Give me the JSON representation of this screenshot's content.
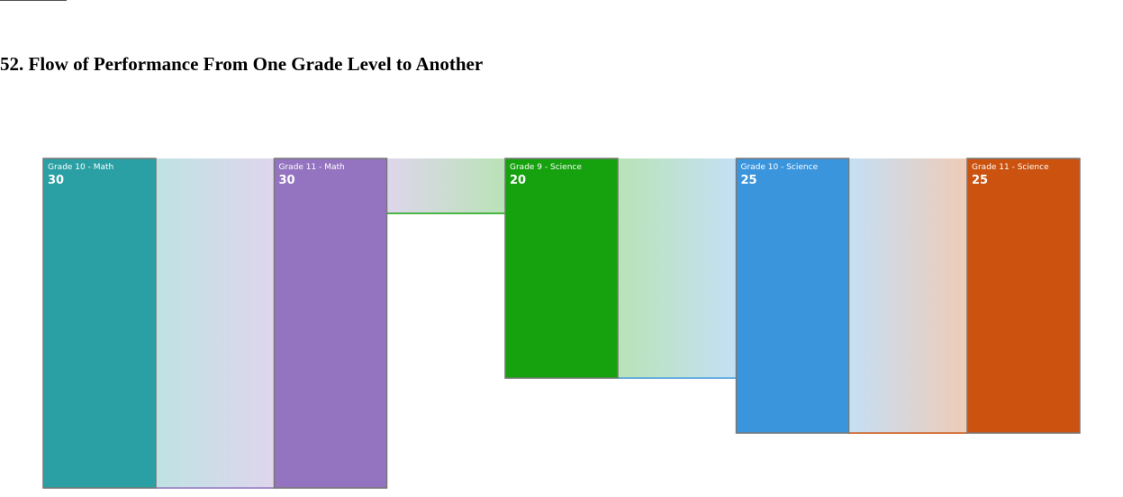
{
  "page": {
    "title": "52. Flow of Performance From One Grade Level to Another"
  },
  "chart_data": {
    "type": "sankey",
    "title": "52. Flow of Performance From One Grade Level to Another",
    "nodes": [
      {
        "id": "g10m",
        "label": "Grade 10 - Math",
        "value": 30,
        "color": "#2aa0a4"
      },
      {
        "id": "g11m",
        "label": "Grade 11 - Math",
        "value": 30,
        "color": "#9474c0"
      },
      {
        "id": "g9s",
        "label": "Grade 9 - Science",
        "value": 20,
        "color": "#16a10f"
      },
      {
        "id": "g10s",
        "label": "Grade 10 - Science",
        "value": 25,
        "color": "#3b95dd"
      },
      {
        "id": "g11s",
        "label": "Grade 11 - Science",
        "value": 25,
        "color": "#cb520f"
      }
    ],
    "links": [
      {
        "source": "g10m",
        "target": "g11m",
        "value": 30
      },
      {
        "source": "g11m",
        "target": "g9s",
        "value": 5
      },
      {
        "source": "g9s",
        "target": "g10s",
        "value": 20
      },
      {
        "source": "g10s",
        "target": "g11s",
        "value": 25
      }
    ],
    "link_opacity": 0.3,
    "border_color": "#777777"
  }
}
